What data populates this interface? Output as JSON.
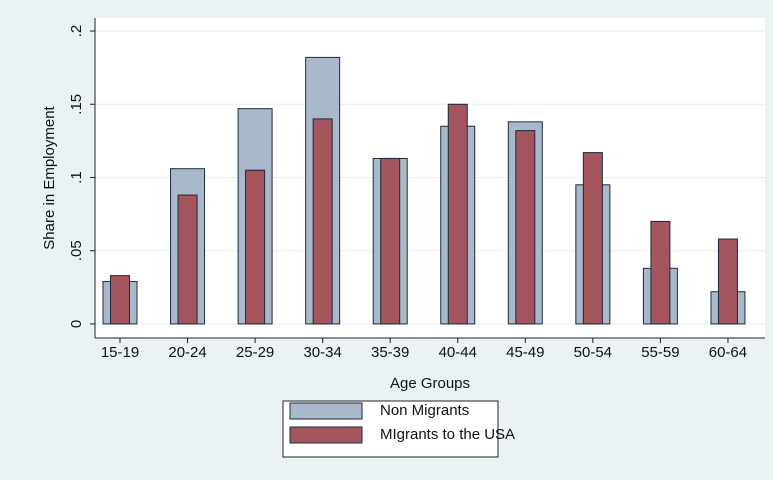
{
  "chart_data": {
    "type": "bar",
    "x_label": "Age Groups",
    "y_label": "Share in Employment",
    "categories": [
      "15-19",
      "20-24",
      "25-29",
      "30-34",
      "35-39",
      "40-44",
      "45-49",
      "50-54",
      "55-59",
      "60-64"
    ],
    "series": [
      {
        "name": "Non Migrants",
        "color": "#a9b9c9",
        "values": [
          0.029,
          0.106,
          0.147,
          0.182,
          0.113,
          0.135,
          0.138,
          0.095,
          0.038,
          0.022
        ]
      },
      {
        "name": "MIgrants to the USA",
        "color": "#a3545c",
        "values": [
          0.033,
          0.088,
          0.105,
          0.14,
          0.113,
          0.15,
          0.132,
          0.117,
          0.07,
          0.058
        ]
      }
    ],
    "ylim": [
      -0.0096,
      0.2089
    ],
    "yticks": [
      0,
      {
        "value": 0.05,
        "label": ".05"
      },
      {
        "value": 0.1,
        "label": ".1"
      },
      {
        "value": 0.15,
        "label": ".15"
      },
      {
        "value": 0.2,
        "label": ".2"
      }
    ],
    "grid": true,
    "legend": "bottom"
  }
}
